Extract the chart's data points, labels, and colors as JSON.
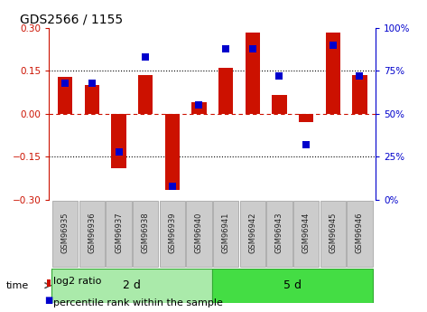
{
  "title": "GDS2566 / 1155",
  "samples": [
    "GSM96935",
    "GSM96936",
    "GSM96937",
    "GSM96938",
    "GSM96939",
    "GSM96940",
    "GSM96941",
    "GSM96942",
    "GSM96943",
    "GSM96944",
    "GSM96945",
    "GSM96946"
  ],
  "log2_ratio": [
    0.13,
    0.1,
    -0.19,
    0.135,
    -0.265,
    0.04,
    0.16,
    0.285,
    0.065,
    -0.03,
    0.285,
    0.135
  ],
  "percentile_rank": [
    68,
    68,
    28,
    83,
    8,
    55,
    88,
    88,
    72,
    32,
    90,
    72
  ],
  "groups": [
    {
      "label": "2 d",
      "start": 0,
      "end": 6,
      "color": "#AAEAAA"
    },
    {
      "label": "5 d",
      "start": 6,
      "end": 12,
      "color": "#44DD44"
    }
  ],
  "group_label": "time",
  "ylim": [
    -0.3,
    0.3
  ],
  "y2lim": [
    0,
    100
  ],
  "yticks": [
    -0.3,
    -0.15,
    0.0,
    0.15,
    0.3
  ],
  "y2ticks": [
    0,
    25,
    50,
    75,
    100
  ],
  "bar_color": "#CC1100",
  "dot_color": "#0000CC",
  "dotted_lines": [
    -0.15,
    0.15
  ],
  "zero_line": 0.0,
  "bar_width": 0.55,
  "dot_size": 35,
  "background_color": "#ffffff",
  "plot_bg_color": "#ffffff",
  "legend_items": [
    "log2 ratio",
    "percentile rank within the sample"
  ],
  "sample_box_color": "#CCCCCC",
  "sample_box_edge": "#999999",
  "title_fontsize": 10,
  "tick_fontsize": 7.5,
  "label_fontsize": 8
}
